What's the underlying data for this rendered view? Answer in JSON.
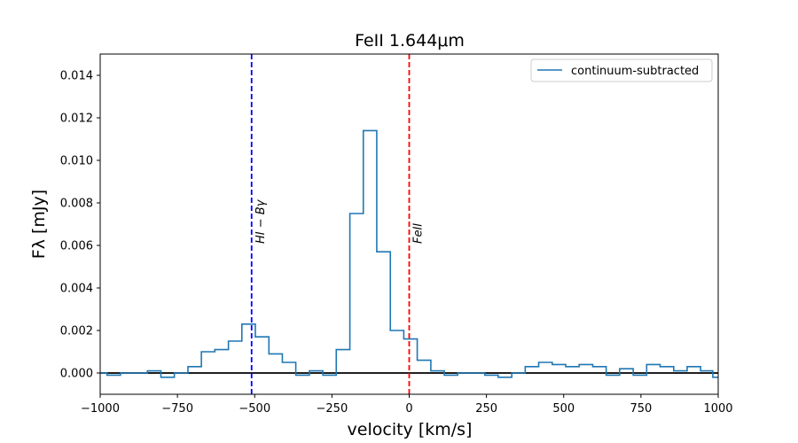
{
  "chart_data": {
    "type": "line",
    "drawstyle": "steps-mid",
    "title": "FeII 1.644μm",
    "xlabel": "velocity [km/s]",
    "ylabel": "Fλ [mJy]",
    "xlim": [
      -1000,
      1000
    ],
    "ylim": [
      -0.001,
      0.015
    ],
    "xticks": [
      -1000,
      -750,
      -500,
      -250,
      0,
      250,
      500,
      750,
      1000
    ],
    "xtick_labels": [
      "−1000",
      "−750",
      "−500",
      "−250",
      "0",
      "250",
      "500",
      "750",
      "1000"
    ],
    "yticks": [
      0.0,
      0.002,
      0.004,
      0.006,
      0.008,
      0.01,
      0.012,
      0.014
    ],
    "ytick_labels": [
      "0.000",
      "0.002",
      "0.004",
      "0.006",
      "0.008",
      "0.010",
      "0.012",
      "0.014"
    ],
    "grid": false,
    "legend": {
      "position": "top-right",
      "entries": [
        "continuum-subtracted"
      ]
    },
    "series": [
      {
        "name": "continuum-subtracted",
        "color": "#1f77b4",
        "x": [
          -1000,
          -956,
          -913,
          -869,
          -825,
          -782,
          -738,
          -694,
          -651,
          -607,
          -563,
          -520,
          -476,
          -432,
          -389,
          -345,
          -301,
          -258,
          -214,
          -170,
          -127,
          -83,
          -39,
          4,
          48,
          92,
          135,
          179,
          223,
          266,
          310,
          354,
          397,
          441,
          485,
          528,
          572,
          616,
          659,
          703,
          747,
          790,
          834,
          878,
          921,
          965,
          1000
        ],
        "values": [
          0.0,
          -0.0001,
          0.0,
          0.0,
          0.0001,
          -0.0002,
          0.0,
          0.0003,
          0.001,
          0.0011,
          0.0015,
          0.0023,
          0.0017,
          0.0009,
          0.0005,
          -0.0001,
          0.0001,
          -0.0001,
          0.0011,
          0.0075,
          0.0114,
          0.0057,
          0.002,
          0.0016,
          0.0006,
          0.0001,
          -0.0001,
          0.0,
          0.0,
          -0.0001,
          -0.0002,
          0.0,
          0.0003,
          0.0005,
          0.0004,
          0.0003,
          0.0004,
          0.0003,
          -0.0001,
          0.0002,
          -0.0001,
          0.0004,
          0.0003,
          0.0001,
          0.0003,
          0.0001,
          -0.0002
        ]
      }
    ],
    "hlines": [
      {
        "y": 0,
        "color": "#000000"
      }
    ],
    "vlines": [
      {
        "x": -510,
        "color": "#0000ff",
        "style": "dashed",
        "label": "HI − Bγ"
      },
      {
        "x": 0,
        "color": "#ff0000",
        "style": "dashed",
        "label": "FeII"
      }
    ]
  }
}
